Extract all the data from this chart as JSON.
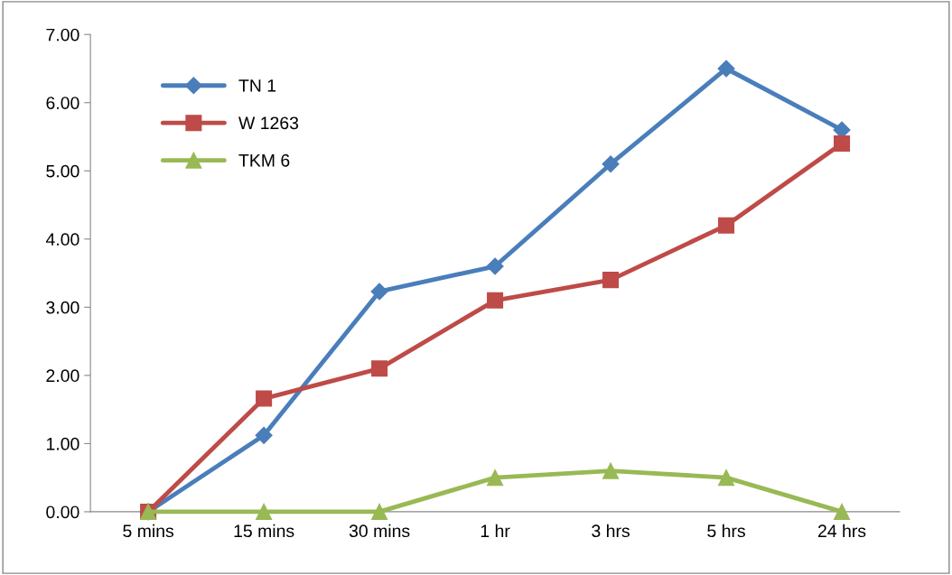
{
  "chart_data": {
    "type": "line",
    "categories": [
      "5 mins",
      "15 mins",
      "30 mins",
      "1 hr",
      "3 hrs",
      "5 hrs",
      "24 hrs"
    ],
    "series": [
      {
        "name": "TN 1",
        "color": "#4a7ebb",
        "marker": "diamond",
        "values": [
          0,
          1.12,
          3.23,
          3.6,
          5.1,
          6.5,
          5.6
        ]
      },
      {
        "name": "W 1263",
        "color": "#be4b48",
        "marker": "square",
        "values": [
          0,
          1.66,
          2.1,
          3.1,
          3.4,
          4.2,
          5.4
        ]
      },
      {
        "name": "TKM 6",
        "color": "#98b954",
        "marker": "triangle",
        "values": [
          0,
          0,
          0,
          0.5,
          0.6,
          0.5,
          0
        ]
      }
    ],
    "ylim": [
      0,
      7
    ],
    "yticks": [
      {
        "value": 0,
        "label": "0.00"
      },
      {
        "value": 1,
        "label": "1.00"
      },
      {
        "value": 2,
        "label": "2.00"
      },
      {
        "value": 3,
        "label": "3.00"
      },
      {
        "value": 4,
        "label": "4.00"
      },
      {
        "value": 5,
        "label": "5.00"
      },
      {
        "value": 6,
        "label": "6.00"
      },
      {
        "value": 7,
        "label": "7.00"
      }
    ],
    "grid": false,
    "legend": "top left"
  }
}
